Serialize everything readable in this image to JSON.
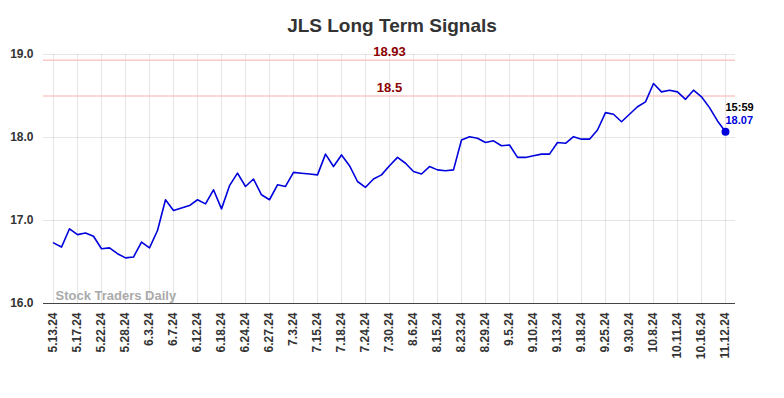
{
  "chart_data": {
    "type": "line",
    "title": "JLS Long Term Signals",
    "categories": [
      "5.13.24",
      null,
      null,
      "5.17.24",
      null,
      null,
      "5.22.24",
      null,
      null,
      "5.28.24",
      null,
      null,
      "6.3.24",
      null,
      null,
      "6.7.24",
      null,
      null,
      "6.12.24",
      null,
      null,
      "6.18.24",
      null,
      null,
      "6.24.24",
      null,
      null,
      "6.27.24",
      null,
      null,
      "7.3.24",
      null,
      null,
      "7.15.24",
      null,
      null,
      "7.18.24",
      null,
      null,
      "7.24.24",
      null,
      null,
      "7.30.24",
      null,
      null,
      "8.6.24",
      null,
      null,
      "8.15.24",
      null,
      null,
      "8.23.24",
      null,
      null,
      "8.29.24",
      null,
      null,
      "9.5.24",
      null,
      null,
      "9.10.24",
      null,
      null,
      "9.13.24",
      null,
      null,
      "9.18.24",
      null,
      null,
      "9.25.24",
      null,
      null,
      "9.30.24",
      null,
      null,
      "10.8.24",
      null,
      null,
      "10.11.24",
      null,
      null,
      "10.16.24",
      null,
      null,
      "11.12.24"
    ],
    "values": [
      16.73,
      16.68,
      16.9,
      16.83,
      16.85,
      16.81,
      16.66,
      16.67,
      16.6,
      16.55,
      16.56,
      16.74,
      16.67,
      16.88,
      17.25,
      17.12,
      17.15,
      17.18,
      17.25,
      17.2,
      17.37,
      17.14,
      17.42,
      17.57,
      17.41,
      17.5,
      17.31,
      17.25,
      17.43,
      17.41,
      17.58,
      17.57,
      17.56,
      17.55,
      17.8,
      17.65,
      17.79,
      17.66,
      17.47,
      17.4,
      17.5,
      17.55,
      17.66,
      17.76,
      17.69,
      17.59,
      17.56,
      17.65,
      17.61,
      17.6,
      17.61,
      17.97,
      18.01,
      17.99,
      17.94,
      17.96,
      17.9,
      17.91,
      17.76,
      17.76,
      17.78,
      17.8,
      17.8,
      17.94,
      17.93,
      18.01,
      17.98,
      17.98,
      18.09,
      18.3,
      18.28,
      18.19,
      18.28,
      18.37,
      18.43,
      18.65,
      18.55,
      18.57,
      18.55,
      18.46,
      18.57,
      18.49,
      18.36,
      18.2,
      18.07
    ],
    "color": "#0000dd",
    "ylim": [
      16,
      19
    ],
    "yticks": [
      16,
      17,
      18,
      19
    ],
    "grid": true,
    "reference_lines": [
      18.93,
      18.5
    ],
    "end_label": "15:59",
    "watermark": "Stock Traders Daily"
  }
}
